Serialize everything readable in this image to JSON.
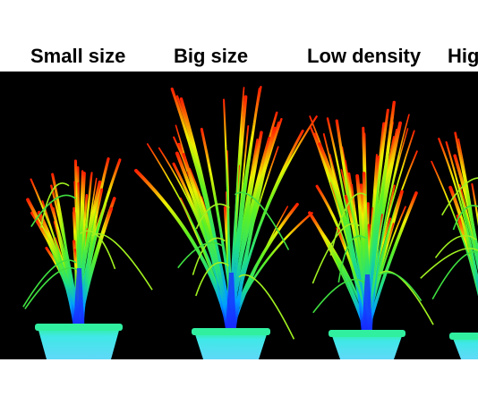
{
  "labels": [
    "Small size",
    "Big size",
    "Low density",
    "Hig"
  ],
  "colors": {
    "background": "#000000",
    "page": "#ffffff",
    "label_text": "#000000",
    "pot": "#38e6e0",
    "pot_rim": "#2ef0b0"
  }
}
